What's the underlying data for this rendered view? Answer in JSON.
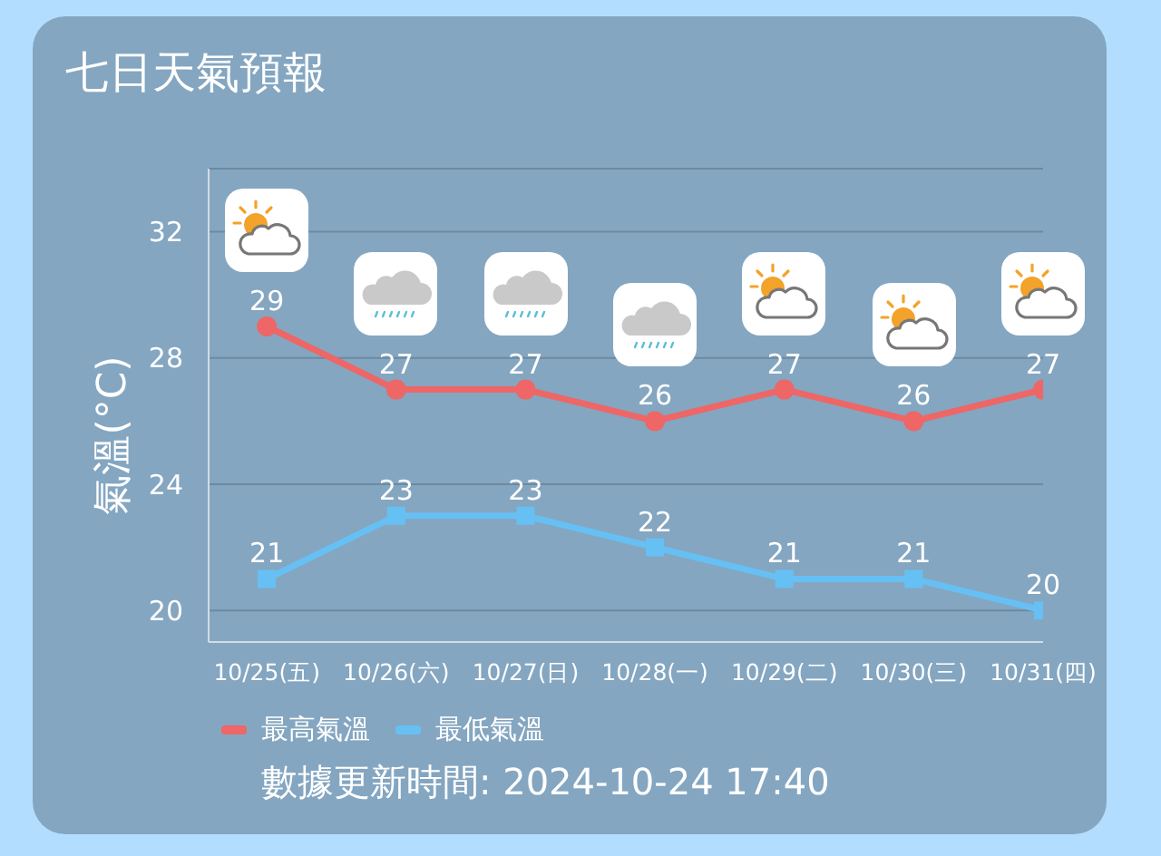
{
  "chart_data": {
    "type": "line",
    "title": "七日天氣預報",
    "ylabel": "氣溫(°C)",
    "categories": [
      "10/25(五)",
      "10/26(六)",
      "10/27(日)",
      "10/28(一)",
      "10/29(二)",
      "10/30(三)",
      "10/31(四)"
    ],
    "series": [
      {
        "name": "最高氣溫",
        "color": "#ee6666",
        "marker": "circle",
        "values": [
          29,
          27,
          27,
          26,
          27,
          26,
          27
        ]
      },
      {
        "name": "最低氣溫",
        "color": "#66c0f4",
        "marker": "square",
        "values": [
          21,
          23,
          23,
          22,
          21,
          21,
          20
        ]
      }
    ],
    "ylim": [
      19,
      34
    ],
    "yticks": [
      20,
      24,
      28,
      32
    ],
    "grid": "y",
    "legend": "bottom left",
    "data_labels": true,
    "annotations": [
      "數據更新時間: 2024-10-24 17:40"
    ]
  }
}
